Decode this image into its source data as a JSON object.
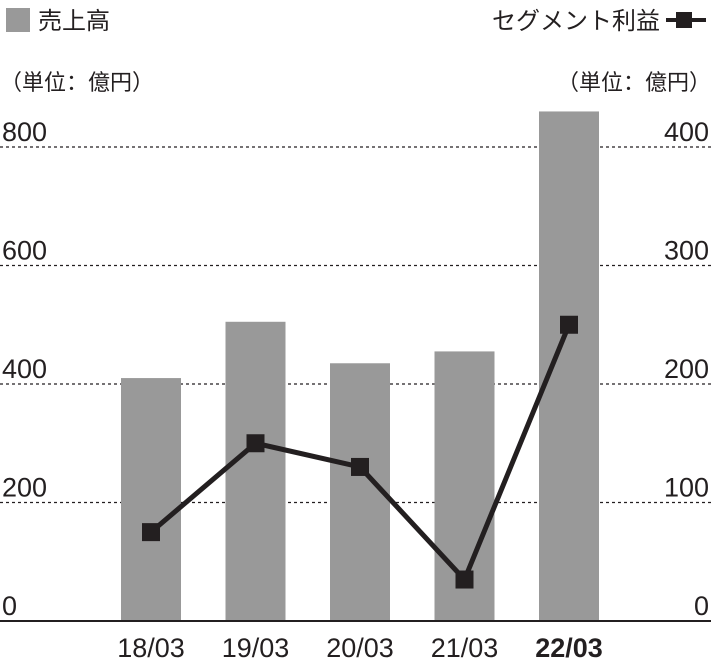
{
  "chart_data": {
    "type": "bar",
    "categories": [
      "18/03",
      "19/03",
      "20/03",
      "21/03",
      "22/03"
    ],
    "highlight_category": "22/03",
    "series": [
      {
        "name": "売上高",
        "kind": "bar",
        "axis": "left",
        "values": [
          410,
          505,
          435,
          455,
          860
        ]
      },
      {
        "name": "セグメント利益",
        "kind": "line",
        "axis": "right",
        "values": [
          75,
          150,
          130,
          35,
          250
        ]
      }
    ],
    "left_axis": {
      "unit_label": "（単位：億円）",
      "ylim": [
        0,
        800
      ],
      "ticks": [
        0,
        200,
        400,
        600,
        800
      ]
    },
    "right_axis": {
      "unit_label": "（単位：億円）",
      "ylim": [
        0,
        400
      ],
      "ticks": [
        0,
        100,
        200,
        300,
        400
      ]
    },
    "grid": "dashed",
    "legend": "top",
    "colors": {
      "bar": "#999999",
      "line": "#231f20",
      "marker": "#231f20",
      "grid": "#231f20",
      "text": "#231f20"
    }
  }
}
